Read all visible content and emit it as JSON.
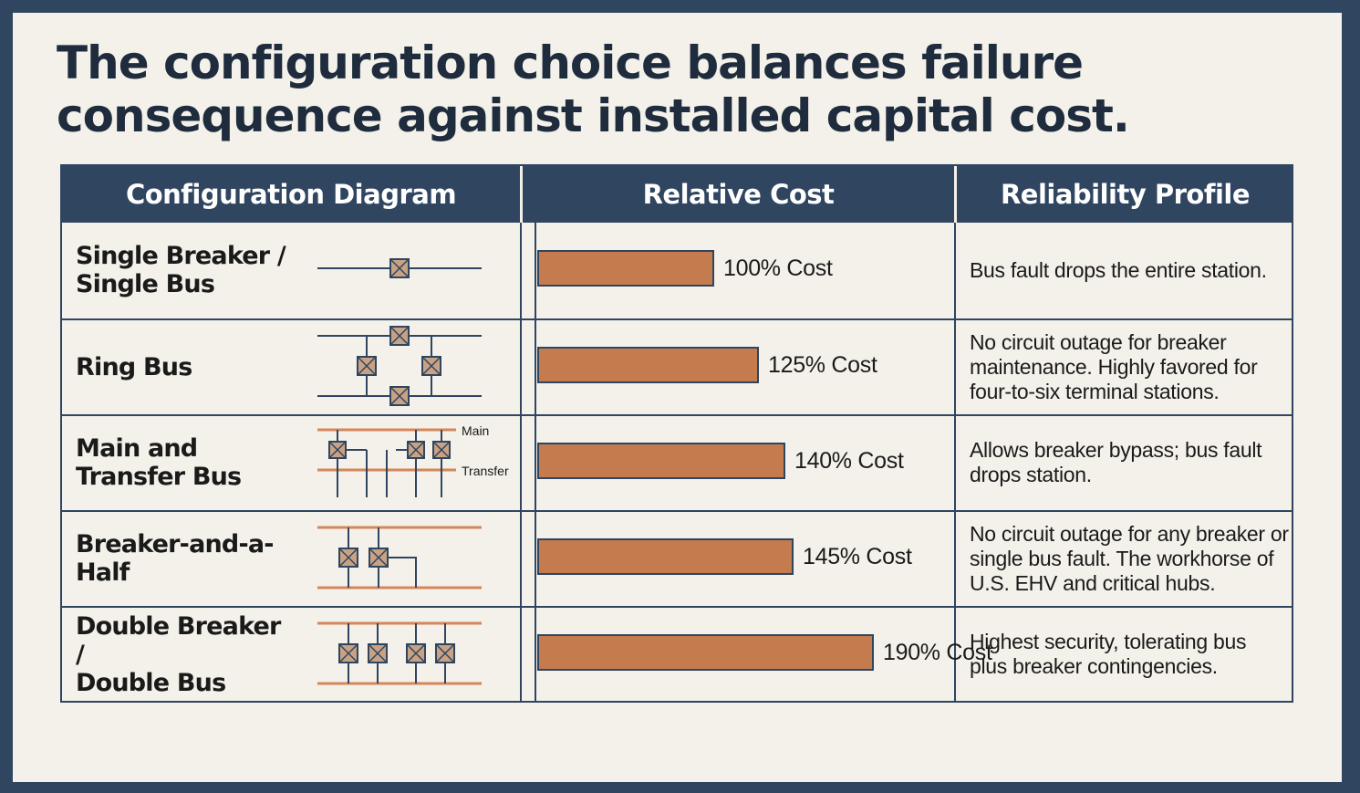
{
  "title": "The configuration choice balances failure consequence against installed capital cost.",
  "table": {
    "headers": [
      "Configuration Diagram",
      "Relative Cost",
      "Reliability Profile"
    ],
    "rows": [
      {
        "name": "Single Breaker /\nSingle Bus",
        "cost_label": "100% Cost",
        "cost_percent": 100,
        "profile": "Bus fault drops the entire station."
      },
      {
        "name": "Ring Bus",
        "cost_label": "125% Cost",
        "cost_percent": 125,
        "profile": "No circuit outage for breaker maintenance. Highly favored for four-to-six terminal stations."
      },
      {
        "name": "Main and\nTransfer Bus",
        "cost_label": "140% Cost",
        "cost_percent": 140,
        "profile": "Allows breaker bypass; bus fault drops station."
      },
      {
        "name": "Breaker-and-a-Half",
        "cost_label": "145% Cost",
        "cost_percent": 145,
        "profile": "No circuit outage for any breaker or single bus fault. The workhorse of U.S. EHV and critical hubs."
      },
      {
        "name": "Double Breaker /\nDouble Bus",
        "cost_label": "190% Cost",
        "cost_percent": 190,
        "profile": "Highest security, tolerating bus plus breaker contingencies."
      }
    ]
  },
  "diagram_labels": {
    "main": "Main",
    "transfer": "Transfer"
  },
  "colors": {
    "frame": "#2f4560",
    "background": "#f3f1ea",
    "bar": "#c47c4e",
    "breaker_fill": "#c9a283",
    "bus_line": "#d4875a"
  }
}
